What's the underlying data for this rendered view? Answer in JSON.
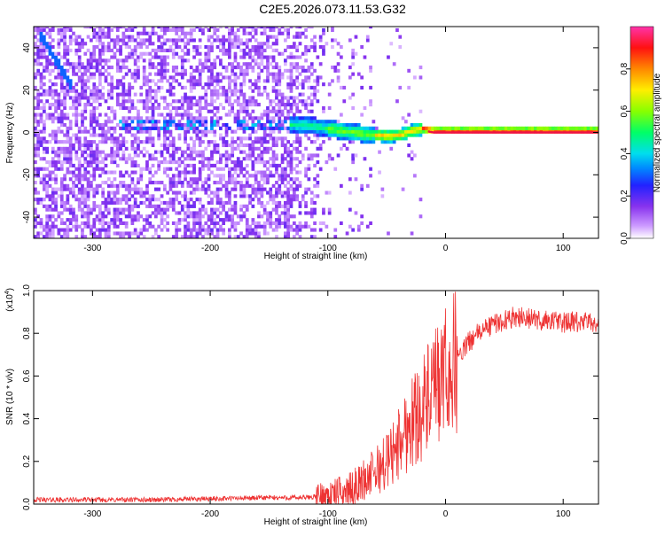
{
  "title": "C2E5.2026.073.11.53.G32",
  "colors": {
    "line": "#ee3333",
    "rainbow": [
      "#ffffff",
      "#eeddff",
      "#cc99ff",
      "#8833ee",
      "#2222ff",
      "#00ccff",
      "#00ff88",
      "#88ff00",
      "#ffdd00",
      "#ff5500",
      "#ee1144",
      "#ff33aa"
    ]
  },
  "chart_data": [
    {
      "type": "heatmap",
      "title": "C2E5.2026.073.11.53.G32",
      "xlabel": "Height of straight line (km)",
      "ylabel": "Frequency (Hz)",
      "xlim": [
        -350,
        130
      ],
      "ylim": [
        -50,
        50
      ],
      "xticks": [
        -300,
        -200,
        -100,
        0,
        100
      ],
      "xtick_labels": [
        "-300",
        "-200",
        "-100",
        "0",
        "100"
      ],
      "yticks": [
        -40,
        -20,
        0,
        20,
        40
      ],
      "ytick_labels": [
        "-40",
        "-20",
        "0",
        "20",
        "40"
      ],
      "colorbar": {
        "label": "Normalized spectral amplitude",
        "range": [
          0.0,
          1.0
        ],
        "ticks": [
          0.0,
          0.2,
          0.4,
          0.6,
          0.8
        ],
        "tick_labels": [
          "0.0",
          "0.2",
          "0.4",
          "0.6",
          "0.8"
        ]
      },
      "ridge": {
        "description": "dominant frequency track",
        "x": [
          -130,
          -110,
          -90,
          -70,
          -50,
          -40,
          -30,
          -20,
          -10,
          0,
          50,
          130
        ],
        "y": [
          3,
          2,
          0,
          -1.5,
          -2.5,
          -2,
          0,
          1,
          0,
          0,
          0,
          0
        ]
      },
      "early_streak": {
        "x": [
          -345,
          -320
        ],
        "y": [
          45,
          22
        ]
      }
    },
    {
      "type": "line",
      "xlabel": "Height of straight line (km)",
      "ylabel": "SNR (10 * v/v)",
      "y_multiplier": "(x10",
      "y_multiplier_exp": "4",
      "y_multiplier_close": ")",
      "xlim": [
        -350,
        130
      ],
      "ylim": [
        0,
        1.0
      ],
      "xticks": [
        -300,
        -200,
        -100,
        0,
        100
      ],
      "xtick_labels": [
        "-300",
        "-200",
        "-100",
        "0",
        "100"
      ],
      "yticks": [
        0.0,
        0.2,
        0.4,
        0.6,
        0.8,
        1.0
      ],
      "ytick_labels": [
        "0.0",
        "0.2",
        "0.4",
        "0.6",
        "0.8",
        "1.0"
      ],
      "series": [
        {
          "name": "SNR",
          "x": [
            -350,
            -300,
            -250,
            -200,
            -150,
            -120,
            -100,
            -80,
            -60,
            -50,
            -40,
            -30,
            -20,
            -10,
            0,
            10,
            20,
            30,
            40,
            50,
            60,
            70,
            80,
            90,
            100,
            110,
            120,
            130
          ],
          "y": [
            0.02,
            0.02,
            0.02,
            0.025,
            0.03,
            0.03,
            0.04,
            0.07,
            0.15,
            0.2,
            0.28,
            0.38,
            0.45,
            0.52,
            0.6,
            0.68,
            0.76,
            0.81,
            0.84,
            0.86,
            0.88,
            0.87,
            0.86,
            0.86,
            0.85,
            0.85,
            0.85,
            0.85
          ]
        }
      ]
    }
  ]
}
